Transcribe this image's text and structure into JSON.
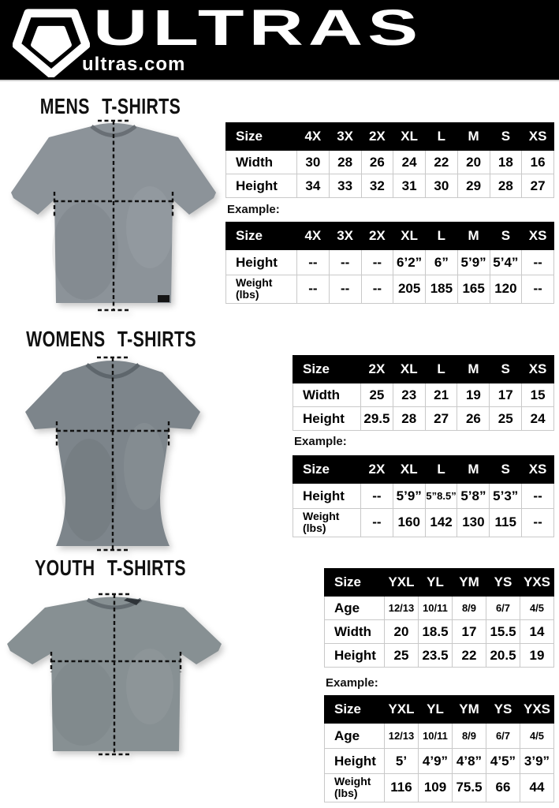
{
  "header": {
    "brand": "ULTRAS",
    "site": "ultras.com"
  },
  "colors": {
    "page_bg": "#ffffff",
    "header_bg": "#000000",
    "table_header_bg": "#000000",
    "table_border": "#c9c9c9",
    "tee_mens": "#8c9399",
    "tee_womens": "#7d858b",
    "tee_youth": "#879093",
    "collar_mens": "#696f75",
    "collar_womens": "#5e666c",
    "collar_youth": "#646c71",
    "measure_line": "#111111"
  },
  "sections": {
    "mens": {
      "title": "MENS T-SHIRTS",
      "example_label": "Example:",
      "size_table": {
        "header": [
          "Size",
          "4X",
          "3X",
          "2X",
          "XL",
          "L",
          "M",
          "S",
          "XS"
        ],
        "rows": [
          {
            "label": "Width",
            "values": [
              "30",
              "28",
              "26",
              "24",
              "22",
              "20",
              "18",
              "16"
            ]
          },
          {
            "label": "Height",
            "values": [
              "34",
              "33",
              "32",
              "31",
              "30",
              "29",
              "28",
              "27"
            ]
          }
        ]
      },
      "example_table": {
        "header": [
          "Size",
          "4X",
          "3X",
          "2X",
          "XL",
          "L",
          "M",
          "S",
          "XS"
        ],
        "rows": [
          {
            "label": "Height",
            "values": [
              "--",
              "--",
              "--",
              "6’2”",
              "6”",
              "5’9”",
              "5’4”",
              "--"
            ]
          },
          {
            "label": "Weight",
            "sublabel": "(lbs)",
            "values": [
              "--",
              "--",
              "--",
              "205",
              "185",
              "165",
              "120",
              "--"
            ]
          }
        ]
      }
    },
    "womens": {
      "title": "WOMENS T-SHIRTS",
      "example_label": "Example:",
      "size_table": {
        "header": [
          "Size",
          "2X",
          "XL",
          "L",
          "M",
          "S",
          "XS"
        ],
        "rows": [
          {
            "label": "Width",
            "values": [
              "25",
              "23",
              "21",
              "19",
              "17",
              "15"
            ]
          },
          {
            "label": "Height",
            "values": [
              "29.5",
              "28",
              "27",
              "26",
              "25",
              "24"
            ]
          }
        ]
      },
      "example_table": {
        "header": [
          "Size",
          "2X",
          "XL",
          "L",
          "M",
          "S",
          "XS"
        ],
        "rows": [
          {
            "label": "Height",
            "values": [
              "--",
              "5’9”",
              "5”8.5”",
              "5’8”",
              "5’3”",
              "--"
            ]
          },
          {
            "label": "Weight",
            "sublabel": "(lbs)",
            "values": [
              "--",
              "160",
              "142",
              "130",
              "115",
              "--"
            ]
          }
        ]
      }
    },
    "youth": {
      "title": "YOUTH T-SHIRTS",
      "example_label": "Example:",
      "size_table": {
        "header": [
          "Size",
          "YXL",
          "YL",
          "YM",
          "YS",
          "YXS"
        ],
        "rows": [
          {
            "label": "Age",
            "values": [
              "12/13",
              "10/11",
              "8/9",
              "6/7",
              "4/5"
            ]
          },
          {
            "label": "Width",
            "values": [
              "20",
              "18.5",
              "17",
              "15.5",
              "14"
            ]
          },
          {
            "label": "Height",
            "values": [
              "25",
              "23.5",
              "22",
              "20.5",
              "19"
            ]
          }
        ]
      },
      "example_table": {
        "header": [
          "Size",
          "YXL",
          "YL",
          "YM",
          "YS",
          "YXS"
        ],
        "rows": [
          {
            "label": "Age",
            "values": [
              "12/13",
              "10/11",
              "8/9",
              "6/7",
              "4/5"
            ]
          },
          {
            "label": "Height",
            "values": [
              "5’",
              "4’9”",
              "4’8”",
              "4’5”",
              "3’9”"
            ]
          },
          {
            "label": "Weight",
            "sublabel": "(lbs)",
            "values": [
              "116",
              "109",
              "75.5",
              "66",
              "44"
            ]
          }
        ]
      }
    }
  }
}
